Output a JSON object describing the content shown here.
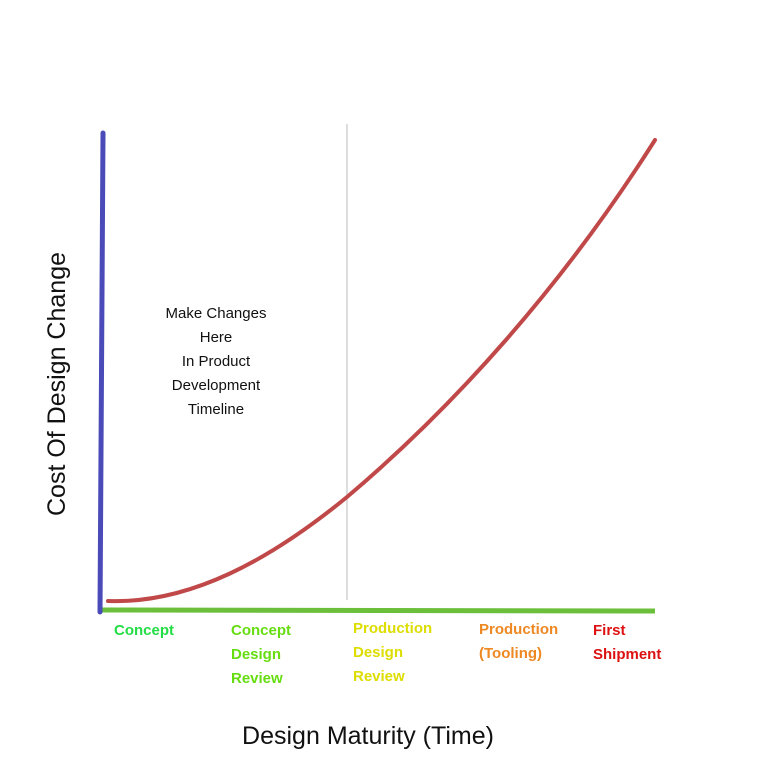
{
  "diagram": {
    "y_axis_label": "Cost Of Design Change",
    "x_axis_label": "Design Maturity (Time)",
    "annotation_lines": [
      "Make Changes",
      "Here",
      "In Product",
      "Development",
      "Timeline"
    ],
    "stages": [
      {
        "id": "concept",
        "lines": [
          "Concept"
        ],
        "color": "#22dd44"
      },
      {
        "id": "concept-design-review",
        "lines": [
          "Concept",
          "Design",
          "Review"
        ],
        "color": "#66dd11"
      },
      {
        "id": "production-design-review",
        "lines": [
          "Production",
          "Design",
          "Review"
        ],
        "color": "#dddd00"
      },
      {
        "id": "production-tooling",
        "lines": [
          "Production",
          "(Tooling)"
        ],
        "color": "#ee8822"
      },
      {
        "id": "first-shipment",
        "lines": [
          "First",
          "Shipment"
        ],
        "color": "#dd1111"
      }
    ],
    "colors": {
      "y_axis": "#4a4ab8",
      "x_axis": "#6cbf3a",
      "curve": "#c04848",
      "divider": "#bbbbbb"
    }
  }
}
